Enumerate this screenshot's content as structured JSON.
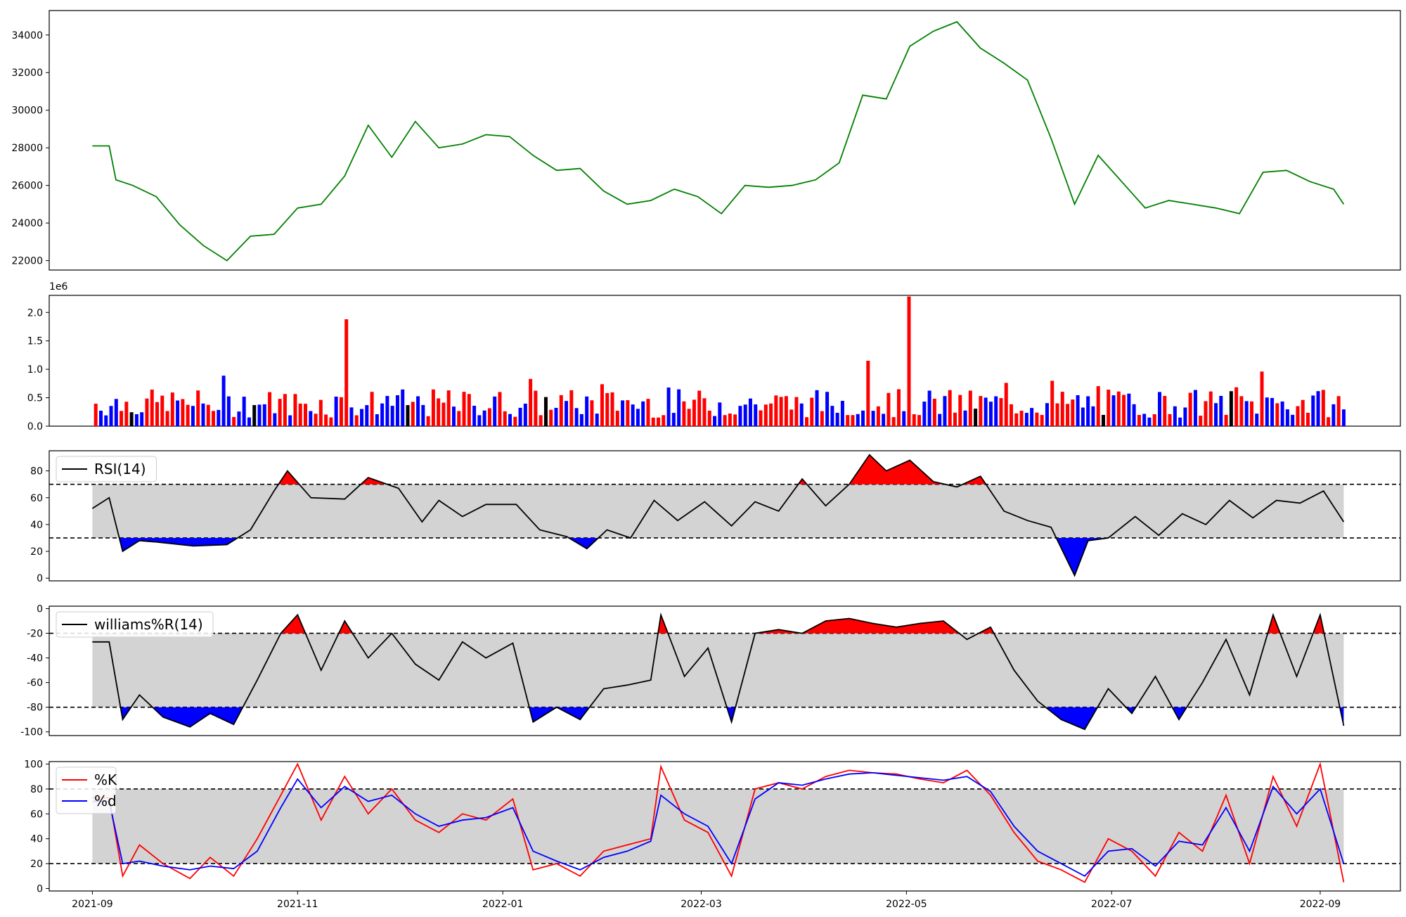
{
  "chart_data": [
    {
      "type": "line",
      "panel": "price",
      "title": "",
      "xlabel": "",
      "ylabel": "",
      "ylim": [
        21500,
        35300
      ],
      "yticks": [
        22000,
        24000,
        26000,
        28000,
        30000,
        32000,
        34000
      ],
      "grid": false,
      "color": "#008000",
      "series": [
        {
          "name": "",
          "x": [
            "2021-09-01",
            "2021-09-06",
            "2021-09-08",
            "2021-09-13",
            "2021-09-20",
            "2021-09-27",
            "2021-10-04",
            "2021-10-11",
            "2021-10-18",
            "2021-10-25",
            "2021-11-01",
            "2021-11-08",
            "2021-11-15",
            "2021-11-22",
            "2021-11-29",
            "2021-12-06",
            "2021-12-13",
            "2021-12-20",
            "2021-12-27",
            "2022-01-03",
            "2022-01-10",
            "2022-01-17",
            "2022-01-24",
            "2022-01-31",
            "2022-02-07",
            "2022-02-14",
            "2022-02-21",
            "2022-02-28",
            "2022-03-07",
            "2022-03-14",
            "2022-03-21",
            "2022-03-28",
            "2022-04-04",
            "2022-04-11",
            "2022-04-18",
            "2022-04-25",
            "2022-05-02",
            "2022-05-09",
            "2022-05-16",
            "2022-05-23",
            "2022-05-30",
            "2022-06-06",
            "2022-06-13",
            "2022-06-20",
            "2022-06-27",
            "2022-07-04",
            "2022-07-11",
            "2022-07-18",
            "2022-07-25",
            "2022-08-01",
            "2022-08-08",
            "2022-08-15",
            "2022-08-22",
            "2022-08-29",
            "2022-09-05",
            "2022-09-08"
          ],
          "values": [
            28100,
            28100,
            26300,
            26000,
            25400,
            23900,
            22800,
            22000,
            23300,
            23400,
            24800,
            25000,
            26500,
            29200,
            27500,
            29400,
            28000,
            28200,
            28700,
            28600,
            27600,
            26800,
            26900,
            25700,
            25000,
            25200,
            25800,
            25400,
            24500,
            26000,
            25900,
            26000,
            26300,
            27200,
            30800,
            30600,
            33400,
            34200,
            34700,
            33300,
            32500,
            31600,
            28500,
            25000,
            27600,
            26200,
            24800,
            25200,
            25000,
            24800,
            24500,
            26700,
            26800,
            26200,
            25800,
            25000
          ]
        }
      ]
    },
    {
      "type": "bar",
      "panel": "volume",
      "title": "",
      "xlabel": "",
      "ylabel": "",
      "offset_label": "1e6",
      "ylim": [
        0,
        2300000
      ],
      "yticks": [
        "0.0",
        "0.5",
        "1.0",
        "1.5",
        "2.0"
      ],
      "colors": {
        "up": "#ff0000",
        "down": "#0000ff",
        "flat": "#000000"
      },
      "highlights": [
        {
          "x": "2021-11-16",
          "value": 1880000,
          "direction": "up"
        },
        {
          "x": "2022-05-02",
          "value": 2280000,
          "direction": "up"
        },
        {
          "x": "2022-04-20",
          "value": 1150000,
          "direction": "up"
        },
        {
          "x": "2022-08-15",
          "value": 960000,
          "direction": "up"
        }
      ],
      "typical_range": [
        150000,
        650000
      ]
    },
    {
      "type": "line",
      "panel": "rsi",
      "title": "",
      "ylim": [
        -2,
        95
      ],
      "yticks": [
        0,
        20,
        40,
        60,
        80
      ],
      "legend": {
        "entries": [
          "RSI(14)"
        ],
        "placement": "upper-left"
      },
      "bands": {
        "upper": 70,
        "lower": 30,
        "fill": "#d3d3d3"
      },
      "overbought_fill": "#ff0000",
      "oversold_fill": "#0000ff",
      "series": [
        {
          "name": "RSI(14)",
          "color": "#000000",
          "x": [
            "2021-09-01",
            "2021-09-06",
            "2021-09-10",
            "2021-09-15",
            "2021-09-20",
            "2021-10-01",
            "2021-10-11",
            "2021-10-18",
            "2021-10-25",
            "2021-10-29",
            "2021-11-05",
            "2021-11-15",
            "2021-11-22",
            "2021-12-01",
            "2021-12-08",
            "2021-12-13",
            "2021-12-20",
            "2021-12-27",
            "2022-01-05",
            "2022-01-12",
            "2022-01-20",
            "2022-01-26",
            "2022-02-01",
            "2022-02-08",
            "2022-02-15",
            "2022-02-22",
            "2022-03-02",
            "2022-03-10",
            "2022-03-17",
            "2022-03-24",
            "2022-03-31",
            "2022-04-07",
            "2022-04-14",
            "2022-04-20",
            "2022-04-25",
            "2022-05-02",
            "2022-05-09",
            "2022-05-16",
            "2022-05-23",
            "2022-05-30",
            "2022-06-06",
            "2022-06-13",
            "2022-06-20",
            "2022-06-24",
            "2022-06-30",
            "2022-07-08",
            "2022-07-15",
            "2022-07-22",
            "2022-07-29",
            "2022-08-05",
            "2022-08-12",
            "2022-08-19",
            "2022-08-26",
            "2022-09-02",
            "2022-09-08"
          ],
          "values": [
            52,
            60,
            20,
            28,
            27,
            24,
            25,
            36,
            65,
            80,
            60,
            59,
            75,
            67,
            42,
            58,
            46,
            55,
            55,
            36,
            31,
            22,
            36,
            30,
            58,
            43,
            57,
            39,
            57,
            50,
            74,
            54,
            70,
            92,
            80,
            88,
            72,
            68,
            76,
            50,
            43,
            38,
            2,
            28,
            30,
            46,
            32,
            48,
            40,
            58,
            45,
            58,
            56,
            65,
            42
          ]
        }
      ]
    },
    {
      "type": "line",
      "panel": "williams",
      "title": "",
      "ylim": [
        -103,
        2
      ],
      "yticks": [
        0,
        -20,
        -40,
        -60,
        -80,
        -100
      ],
      "legend": {
        "entries": [
          "williams%R(14)"
        ],
        "placement": "upper-left"
      },
      "bands": {
        "upper": -20,
        "lower": -80,
        "fill": "#d3d3d3"
      },
      "overbought_fill": "#ff0000",
      "oversold_fill": "#0000ff",
      "series": [
        {
          "name": "williams%R(14)",
          "color": "#000000",
          "x": [
            "2021-09-01",
            "2021-09-06",
            "2021-09-10",
            "2021-09-15",
            "2021-09-22",
            "2021-09-30",
            "2021-10-06",
            "2021-10-13",
            "2021-10-20",
            "2021-10-27",
            "2021-11-01",
            "2021-11-08",
            "2021-11-15",
            "2021-11-22",
            "2021-11-29",
            "2021-12-06",
            "2021-12-13",
            "2021-12-20",
            "2021-12-27",
            "2022-01-04",
            "2022-01-10",
            "2022-01-17",
            "2022-01-24",
            "2022-01-31",
            "2022-02-07",
            "2022-02-14",
            "2022-02-17",
            "2022-02-24",
            "2022-03-03",
            "2022-03-10",
            "2022-03-17",
            "2022-03-24",
            "2022-03-31",
            "2022-04-07",
            "2022-04-14",
            "2022-04-21",
            "2022-04-28",
            "2022-05-05",
            "2022-05-12",
            "2022-05-19",
            "2022-05-26",
            "2022-06-02",
            "2022-06-09",
            "2022-06-16",
            "2022-06-23",
            "2022-06-30",
            "2022-07-07",
            "2022-07-14",
            "2022-07-21",
            "2022-07-28",
            "2022-08-04",
            "2022-08-11",
            "2022-08-18",
            "2022-08-25",
            "2022-09-01",
            "2022-09-08"
          ],
          "values": [
            -27,
            -27,
            -90,
            -70,
            -88,
            -96,
            -85,
            -94,
            -58,
            -20,
            -5,
            -50,
            -10,
            -40,
            -20,
            -45,
            -58,
            -27,
            -40,
            -28,
            -92,
            -80,
            -90,
            -65,
            -62,
            -58,
            -5,
            -55,
            -32,
            -92,
            -20,
            -17,
            -20,
            -10,
            -8,
            -12,
            -15,
            -12,
            -10,
            -25,
            -15,
            -50,
            -75,
            -90,
            -98,
            -65,
            -85,
            -55,
            -90,
            -60,
            -25,
            -70,
            -5,
            -55,
            -5,
            -95
          ]
        }
      ]
    },
    {
      "type": "line",
      "panel": "stochastic",
      "title": "",
      "ylim": [
        -2,
        102
      ],
      "yticks": [
        0,
        20,
        40,
        60,
        80,
        100
      ],
      "legend": {
        "entries": [
          "%K",
          "%d"
        ],
        "placement": "upper-left"
      },
      "bands": {
        "upper": 80,
        "lower": 20,
        "fill": "#d3d3d3"
      },
      "x_tick_labels": [
        "2021-09",
        "2021-11",
        "2022-01",
        "2022-03",
        "2022-05",
        "2022-07",
        "2022-09"
      ],
      "series": [
        {
          "name": "%K",
          "color": "#ff0000",
          "x": [
            "2021-09-01",
            "2021-09-06",
            "2021-09-10",
            "2021-09-15",
            "2021-09-22",
            "2021-09-30",
            "2021-10-06",
            "2021-10-13",
            "2021-10-20",
            "2021-10-27",
            "2021-11-01",
            "2021-11-08",
            "2021-11-15",
            "2021-11-22",
            "2021-11-29",
            "2021-12-06",
            "2021-12-13",
            "2021-12-20",
            "2021-12-27",
            "2022-01-04",
            "2022-01-10",
            "2022-01-17",
            "2022-01-24",
            "2022-01-31",
            "2022-02-07",
            "2022-02-14",
            "2022-02-17",
            "2022-02-24",
            "2022-03-03",
            "2022-03-10",
            "2022-03-17",
            "2022-03-24",
            "2022-03-31",
            "2022-04-07",
            "2022-04-14",
            "2022-04-21",
            "2022-04-28",
            "2022-05-05",
            "2022-05-12",
            "2022-05-19",
            "2022-05-26",
            "2022-06-02",
            "2022-06-09",
            "2022-06-16",
            "2022-06-23",
            "2022-06-30",
            "2022-07-07",
            "2022-07-14",
            "2022-07-21",
            "2022-07-28",
            "2022-08-04",
            "2022-08-11",
            "2022-08-18",
            "2022-08-25",
            "2022-09-01",
            "2022-09-08"
          ],
          "values": [
            73,
            73,
            10,
            35,
            20,
            8,
            25,
            10,
            40,
            75,
            100,
            55,
            90,
            60,
            80,
            55,
            45,
            60,
            55,
            72,
            15,
            20,
            10,
            30,
            35,
            40,
            98,
            55,
            45,
            10,
            80,
            85,
            80,
            90,
            95,
            93,
            92,
            88,
            85,
            95,
            75,
            45,
            22,
            15,
            5,
            40,
            30,
            10,
            45,
            30,
            75,
            20,
            90,
            50,
            100,
            5
          ]
        },
        {
          "name": "%d",
          "color": "#0000ff",
          "x": [
            "2021-09-01",
            "2021-09-06",
            "2021-09-10",
            "2021-09-15",
            "2021-09-22",
            "2021-09-30",
            "2021-10-06",
            "2021-10-13",
            "2021-10-20",
            "2021-10-27",
            "2021-11-01",
            "2021-11-08",
            "2021-11-15",
            "2021-11-22",
            "2021-11-29",
            "2021-12-06",
            "2021-12-13",
            "2021-12-20",
            "2021-12-27",
            "2022-01-04",
            "2022-01-10",
            "2022-01-17",
            "2022-01-24",
            "2022-01-31",
            "2022-02-07",
            "2022-02-14",
            "2022-02-17",
            "2022-02-24",
            "2022-03-03",
            "2022-03-10",
            "2022-03-17",
            "2022-03-24",
            "2022-03-31",
            "2022-04-07",
            "2022-04-14",
            "2022-04-21",
            "2022-04-28",
            "2022-05-05",
            "2022-05-12",
            "2022-05-19",
            "2022-05-26",
            "2022-06-02",
            "2022-06-09",
            "2022-06-16",
            "2022-06-23",
            "2022-06-30",
            "2022-07-07",
            "2022-07-14",
            "2022-07-21",
            "2022-07-28",
            "2022-08-04",
            "2022-08-11",
            "2022-08-18",
            "2022-08-25",
            "2022-09-01",
            "2022-09-08"
          ],
          "values": [
            70,
            70,
            20,
            22,
            18,
            15,
            18,
            16,
            30,
            65,
            88,
            65,
            82,
            70,
            75,
            60,
            50,
            55,
            57,
            65,
            30,
            22,
            15,
            25,
            30,
            38,
            75,
            60,
            50,
            20,
            72,
            85,
            83,
            88,
            92,
            93,
            91,
            89,
            87,
            90,
            78,
            50,
            30,
            20,
            10,
            30,
            32,
            18,
            38,
            35,
            65,
            30,
            82,
            60,
            80,
            20
          ]
        }
      ]
    }
  ]
}
